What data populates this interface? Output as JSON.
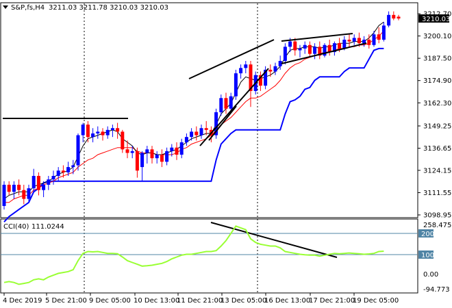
{
  "header": {
    "symbol_label": "S&P,fs,H4",
    "ohlc_values": "3211.03 3211.78 3210.03 3210.03"
  },
  "cci_header": {
    "label": "CCI(40)",
    "value": "111.0244"
  },
  "price_axis": {
    "ticks": [
      "3212.70",
      "3200.10",
      "3187.50",
      "3174.90",
      "3162.30",
      "3149.25",
      "3136.65",
      "3124.15",
      "3111.55",
      "3098.95"
    ],
    "current_price_tag": "3210.03"
  },
  "cci_axis": {
    "ticks": [
      "258.475",
      "200",
      "100",
      "0.00",
      "-94.773"
    ],
    "level_tags": [
      "200",
      "100"
    ]
  },
  "time_axis": {
    "ticks": [
      "4 Dec 2019",
      "5 Dec 21:00",
      "9 Dec 05:00",
      "10 Dec 13:00",
      "11 Dec 21:00",
      "13 Dec 05:00",
      "16 Dec 13:00",
      "17 Dec 21:00",
      "19 Dec 05:00"
    ]
  },
  "colors": {
    "bull_candle": "#0000ff",
    "bear_candle": "#ff0000",
    "blue_line": "#0000ff",
    "red_line": "#ff0000",
    "black_line": "#000000",
    "cci_line": "#99ff33",
    "cci_level_line": "#4f84a5",
    "trend_lines": "#000000"
  },
  "chart_data": {
    "type": "candlestick",
    "ylim": [
      3098.95,
      3212.7
    ],
    "candles": [
      {
        "o": 3104,
        "h": 3118,
        "c": 3116,
        "l": 3102
      },
      {
        "o": 3116,
        "h": 3118,
        "c": 3112,
        "l": 3110
      },
      {
        "o": 3112,
        "h": 3118,
        "c": 3116,
        "l": 3108
      },
      {
        "o": 3116,
        "h": 3119,
        "c": 3113,
        "l": 3110
      },
      {
        "o": 3113,
        "h": 3116,
        "c": 3108,
        "l": 3105
      },
      {
        "o": 3108,
        "h": 3116,
        "c": 3114,
        "l": 3106
      },
      {
        "o": 3114,
        "h": 3125,
        "c": 3121,
        "l": 3112
      },
      {
        "o": 3121,
        "h": 3123,
        "c": 3113,
        "l": 3110
      },
      {
        "o": 3113,
        "h": 3118,
        "c": 3116,
        "l": 3109
      },
      {
        "o": 3116,
        "h": 3121,
        "c": 3119,
        "l": 3113
      },
      {
        "o": 3119,
        "h": 3124,
        "c": 3121,
        "l": 3116
      },
      {
        "o": 3121,
        "h": 3126,
        "c": 3124,
        "l": 3118
      },
      {
        "o": 3124,
        "h": 3127,
        "c": 3123,
        "l": 3120
      },
      {
        "o": 3123,
        "h": 3129,
        "c": 3126,
        "l": 3121
      },
      {
        "o": 3126,
        "h": 3130,
        "c": 3127,
        "l": 3122
      },
      {
        "o": 3127,
        "h": 3145,
        "c": 3144,
        "l": 3124
      },
      {
        "o": 3144,
        "h": 3151,
        "c": 3150,
        "l": 3140
      },
      {
        "o": 3150,
        "h": 3152,
        "c": 3143,
        "l": 3140
      },
      {
        "o": 3143,
        "h": 3148,
        "c": 3145,
        "l": 3140
      },
      {
        "o": 3145,
        "h": 3149,
        "c": 3146,
        "l": 3142
      },
      {
        "o": 3146,
        "h": 3148,
        "c": 3144,
        "l": 3141
      },
      {
        "o": 3144,
        "h": 3149,
        "c": 3147,
        "l": 3142
      },
      {
        "o": 3147,
        "h": 3150,
        "c": 3148,
        "l": 3143
      },
      {
        "o": 3148,
        "h": 3151,
        "c": 3146,
        "l": 3142
      },
      {
        "o": 3146,
        "h": 3147,
        "c": 3136,
        "l": 3134
      },
      {
        "o": 3136,
        "h": 3141,
        "c": 3134,
        "l": 3131
      },
      {
        "o": 3134,
        "h": 3138,
        "c": 3135,
        "l": 3131
      },
      {
        "o": 3135,
        "h": 3137,
        "c": 3124,
        "l": 3120
      },
      {
        "o": 3126,
        "h": 3135,
        "c": 3134,
        "l": 3118
      },
      {
        "o": 3134,
        "h": 3138,
        "c": 3136,
        "l": 3128
      },
      {
        "o": 3136,
        "h": 3138,
        "c": 3131,
        "l": 3128
      },
      {
        "o": 3131,
        "h": 3135,
        "c": 3133,
        "l": 3128
      },
      {
        "o": 3133,
        "h": 3136,
        "c": 3129,
        "l": 3126
      },
      {
        "o": 3129,
        "h": 3137,
        "c": 3135,
        "l": 3127
      },
      {
        "o": 3135,
        "h": 3139,
        "c": 3137,
        "l": 3132
      },
      {
        "o": 3137,
        "h": 3140,
        "c": 3133,
        "l": 3130
      },
      {
        "o": 3133,
        "h": 3142,
        "c": 3140,
        "l": 3131
      },
      {
        "o": 3140,
        "h": 3145,
        "c": 3143,
        "l": 3138
      },
      {
        "o": 3143,
        "h": 3148,
        "c": 3146,
        "l": 3141
      },
      {
        "o": 3146,
        "h": 3149,
        "c": 3144,
        "l": 3141
      },
      {
        "o": 3144,
        "h": 3150,
        "c": 3148,
        "l": 3142
      },
      {
        "o": 3148,
        "h": 3152,
        "c": 3147,
        "l": 3144
      },
      {
        "o": 3147,
        "h": 3149,
        "c": 3144,
        "l": 3140
      },
      {
        "o": 3144,
        "h": 3159,
        "c": 3157,
        "l": 3142
      },
      {
        "o": 3157,
        "h": 3167,
        "c": 3165,
        "l": 3155
      },
      {
        "o": 3165,
        "h": 3168,
        "c": 3159,
        "l": 3156
      },
      {
        "o": 3159,
        "h": 3168,
        "c": 3166,
        "l": 3157
      },
      {
        "o": 3166,
        "h": 3181,
        "c": 3179,
        "l": 3164
      },
      {
        "o": 3179,
        "h": 3184,
        "c": 3182,
        "l": 3176
      },
      {
        "o": 3182,
        "h": 3186,
        "c": 3184,
        "l": 3179
      },
      {
        "o": 3184,
        "h": 3186,
        "c": 3169,
        "l": 3160
      },
      {
        "o": 3169,
        "h": 3180,
        "c": 3178,
        "l": 3167
      },
      {
        "o": 3178,
        "h": 3180,
        "c": 3172,
        "l": 3169
      },
      {
        "o": 3172,
        "h": 3183,
        "c": 3181,
        "l": 3170
      },
      {
        "o": 3181,
        "h": 3184,
        "c": 3180,
        "l": 3177
      },
      {
        "o": 3180,
        "h": 3185,
        "c": 3183,
        "l": 3178
      },
      {
        "o": 3183,
        "h": 3189,
        "c": 3186,
        "l": 3181
      },
      {
        "o": 3186,
        "h": 3196,
        "c": 3194,
        "l": 3184
      },
      {
        "o": 3194,
        "h": 3199,
        "c": 3197,
        "l": 3191
      },
      {
        "o": 3197,
        "h": 3199,
        "c": 3192,
        "l": 3189
      },
      {
        "o": 3192,
        "h": 3195,
        "c": 3193,
        "l": 3188
      },
      {
        "o": 3193,
        "h": 3197,
        "c": 3195,
        "l": 3190
      },
      {
        "o": 3195,
        "h": 3197,
        "c": 3190,
        "l": 3188
      },
      {
        "o": 3190,
        "h": 3196,
        "c": 3194,
        "l": 3187
      },
      {
        "o": 3194,
        "h": 3197,
        "c": 3189,
        "l": 3187
      },
      {
        "o": 3189,
        "h": 3196,
        "c": 3195,
        "l": 3188
      },
      {
        "o": 3195,
        "h": 3198,
        "c": 3191,
        "l": 3189
      },
      {
        "o": 3191,
        "h": 3197,
        "c": 3196,
        "l": 3189
      },
      {
        "o": 3196,
        "h": 3199,
        "c": 3193,
        "l": 3191
      },
      {
        "o": 3193,
        "h": 3200,
        "c": 3198,
        "l": 3192
      },
      {
        "o": 3198,
        "h": 3201,
        "c": 3197,
        "l": 3194
      },
      {
        "o": 3197,
        "h": 3201,
        "c": 3199,
        "l": 3195
      },
      {
        "o": 3199,
        "h": 3202,
        "c": 3196,
        "l": 3194
      },
      {
        "o": 3196,
        "h": 3200,
        "c": 3198,
        "l": 3194
      },
      {
        "o": 3198,
        "h": 3201,
        "c": 3195,
        "l": 3193
      },
      {
        "o": 3195,
        "h": 3203,
        "c": 3201,
        "l": 3194
      },
      {
        "o": 3201,
        "h": 3205,
        "c": 3198,
        "l": 3196
      },
      {
        "o": 3198,
        "h": 3208,
        "c": 3206,
        "l": 3197
      },
      {
        "o": 3206,
        "h": 3214,
        "c": 3212,
        "l": 3205
      },
      {
        "o": 3212,
        "h": 3214,
        "c": 3210,
        "l": 3209
      },
      {
        "o": 3211,
        "h": 3212,
        "c": 3210,
        "l": 3209
      }
    ],
    "blue_line": [
      3095,
      3098,
      3100,
      3102,
      3104,
      3106,
      3112,
      3114,
      3117,
      3118,
      3118,
      3118,
      3118,
      3118,
      3118,
      3118,
      3118,
      3118,
      3118,
      3118,
      3118,
      3118,
      3118,
      3118,
      3118,
      3118,
      3118,
      3118,
      3118,
      3118,
      3118,
      3118,
      3118,
      3118,
      3118,
      3118,
      3118,
      3118,
      3118,
      3118,
      3118,
      3118,
      3118,
      3130,
      3139,
      3142,
      3145,
      3147,
      3147,
      3147,
      3147,
      3147,
      3147,
      3147,
      3147,
      3147,
      3147,
      3156,
      3163,
      3164,
      3166,
      3170,
      3171,
      3175,
      3177,
      3177,
      3177,
      3177,
      3177,
      3180,
      3182,
      3182,
      3182,
      3182,
      3187,
      3192,
      3193,
      3193
    ],
    "red_line": [
      3106,
      3106,
      3108,
      3109,
      3110,
      3110,
      3113,
      3114,
      3116,
      3117,
      3118,
      3120,
      3121,
      3122,
      3123,
      3126,
      3128,
      3130,
      3131,
      3133,
      3134,
      3135,
      3136,
      3137,
      3137,
      3137,
      3137,
      3135,
      3134,
      3134,
      3134,
      3133,
      3133,
      3133,
      3133,
      3134,
      3136,
      3137,
      3139,
      3140,
      3141,
      3142,
      3144,
      3147,
      3150,
      3152,
      3154,
      3157,
      3160,
      3163,
      3165,
      3165,
      3166,
      3168,
      3170,
      3172,
      3175,
      3179,
      3182,
      3184,
      3185,
      3187,
      3188,
      3189,
      3190,
      3191,
      3191,
      3192,
      3193,
      3193,
      3194,
      3194,
      3195,
      3195,
      3196,
      3198,
      3200,
      3203
    ],
    "black_line": [
      3108,
      3110,
      3111,
      3112,
      3112,
      3112,
      3115,
      3116,
      3117,
      3118,
      3120,
      3122,
      3123,
      3124,
      3126,
      3132,
      3138,
      3142,
      3143,
      3144,
      3145,
      3146,
      3147,
      3146,
      3142,
      3140,
      3138,
      3134,
      3133,
      3134,
      3134,
      3133,
      3133,
      3134,
      3135,
      3136,
      3138,
      3140,
      3142,
      3143,
      3144,
      3145,
      3145,
      3150,
      3156,
      3159,
      3162,
      3168,
      3174,
      3177,
      3176,
      3175,
      3176,
      3177,
      3178,
      3180,
      3183,
      3188,
      3192,
      3193,
      3193,
      3194,
      3194,
      3194,
      3193,
      3194,
      3194,
      3195,
      3196,
      3196,
      3196,
      3197,
      3197,
      3197,
      3199,
      3202,
      3206,
      3208
    ],
    "cci": [
      -60,
      -55,
      -60,
      -70,
      -65,
      -60,
      -45,
      -40,
      -45,
      -30,
      -20,
      -10,
      -5,
      0,
      10,
      60,
      100,
      110,
      108,
      110,
      105,
      100,
      100,
      98,
      80,
      60,
      50,
      40,
      30,
      32,
      35,
      40,
      45,
      55,
      70,
      80,
      90,
      95,
      95,
      100,
      105,
      110,
      110,
      115,
      140,
      170,
      210,
      250,
      240,
      230,
      180,
      160,
      150,
      145,
      140,
      140,
      130,
      110,
      105,
      100,
      95,
      92,
      90,
      90,
      85,
      90,
      95,
      100,
      98,
      100,
      102,
      100,
      98,
      95,
      97,
      100,
      110,
      112
    ],
    "trend_lines": [
      {
        "from": [
          3138,
          292
        ],
        "to": [
          3196,
          396
        ]
      },
      {
        "from": [
          3180,
          276
        ],
        "to": [
          3196,
          396
        ]
      },
      {
        "from": [
          3154,
          341
        ],
        "to": [
          3182,
          386
        ]
      },
      {
        "from": [
          3197,
          411
        ],
        "to": [
          3203,
          514
        ]
      },
      {
        "from": [
          3188,
          411
        ],
        "to": [
          3195,
          530
        ]
      },
      {
        "from": [
          3152,
          4
        ],
        "to": [
          3152,
          186
        ]
      }
    ]
  }
}
